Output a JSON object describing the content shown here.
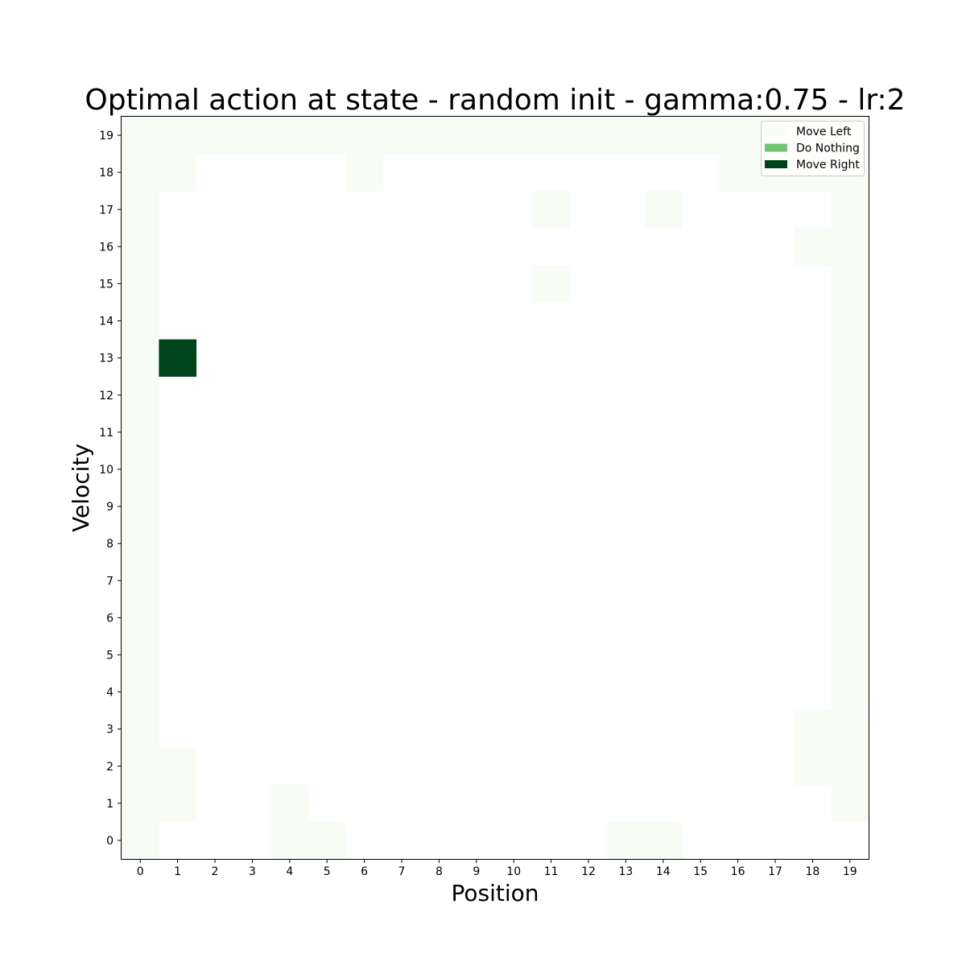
{
  "chart_data": {
    "type": "heatmap",
    "title": "Optimal action at state - random init - gamma:0.75 - lr:2",
    "xlabel": "Position",
    "ylabel": "Velocity",
    "x_ticks": [
      "0",
      "1",
      "2",
      "3",
      "4",
      "5",
      "6",
      "7",
      "8",
      "9",
      "10",
      "11",
      "12",
      "13",
      "14",
      "15",
      "16",
      "17",
      "18",
      "19"
    ],
    "y_ticks": [
      "0",
      "1",
      "2",
      "3",
      "4",
      "5",
      "6",
      "7",
      "8",
      "9",
      "10",
      "11",
      "12",
      "13",
      "14",
      "15",
      "16",
      "17",
      "18",
      "19"
    ],
    "legend_position": "top-right",
    "grid": false,
    "legend": [
      {
        "label": "Move Left",
        "value": 0,
        "color": "#f7fcf5"
      },
      {
        "label": "Do Nothing",
        "value": 1,
        "color": "#74c476"
      },
      {
        "label": "Move Right",
        "value": 2,
        "color": "#00441b"
      }
    ],
    "colors": {
      "0": "#f7fcf5",
      "1": "#74c476",
      "2": "#00441b"
    },
    "blank_color": "#ffffff",
    "cells_note_rows": "rows indexed by velocity 0..19; each row lists 20 position values; null = blank",
    "cells": [
      [
        0,
        null,
        null,
        null,
        0,
        0,
        null,
        null,
        null,
        null,
        null,
        null,
        null,
        0,
        0,
        null,
        null,
        null,
        null,
        null
      ],
      [
        0,
        0,
        null,
        null,
        0,
        null,
        null,
        null,
        null,
        null,
        null,
        null,
        null,
        null,
        null,
        null,
        null,
        null,
        null,
        0
      ],
      [
        0,
        0,
        null,
        null,
        null,
        null,
        null,
        null,
        null,
        null,
        null,
        null,
        null,
        null,
        null,
        null,
        null,
        null,
        0,
        0
      ],
      [
        0,
        null,
        null,
        null,
        null,
        null,
        null,
        null,
        null,
        null,
        null,
        null,
        null,
        null,
        null,
        null,
        null,
        null,
        0,
        0
      ],
      [
        0,
        null,
        null,
        null,
        null,
        null,
        null,
        null,
        null,
        null,
        null,
        null,
        null,
        null,
        null,
        null,
        null,
        null,
        null,
        0
      ],
      [
        0,
        null,
        null,
        null,
        null,
        null,
        null,
        null,
        null,
        null,
        null,
        null,
        null,
        null,
        null,
        null,
        null,
        null,
        null,
        0
      ],
      [
        0,
        null,
        null,
        null,
        null,
        null,
        null,
        null,
        null,
        null,
        null,
        null,
        null,
        null,
        null,
        null,
        null,
        null,
        null,
        0
      ],
      [
        0,
        null,
        null,
        null,
        null,
        null,
        null,
        null,
        null,
        null,
        null,
        null,
        null,
        null,
        null,
        null,
        null,
        null,
        null,
        0
      ],
      [
        0,
        null,
        null,
        null,
        null,
        null,
        null,
        null,
        null,
        null,
        null,
        null,
        null,
        null,
        null,
        null,
        null,
        null,
        null,
        0
      ],
      [
        0,
        null,
        null,
        null,
        null,
        null,
        null,
        null,
        null,
        null,
        null,
        null,
        null,
        null,
        null,
        null,
        null,
        null,
        null,
        0
      ],
      [
        0,
        null,
        null,
        null,
        null,
        null,
        null,
        null,
        null,
        null,
        null,
        null,
        null,
        null,
        null,
        null,
        null,
        null,
        null,
        0
      ],
      [
        0,
        null,
        null,
        null,
        null,
        null,
        null,
        null,
        null,
        null,
        null,
        null,
        null,
        null,
        null,
        null,
        null,
        null,
        null,
        0
      ],
      [
        0,
        null,
        null,
        null,
        null,
        null,
        null,
        null,
        null,
        null,
        null,
        null,
        null,
        null,
        null,
        null,
        null,
        null,
        null,
        0
      ],
      [
        0,
        2,
        null,
        null,
        null,
        null,
        null,
        null,
        null,
        null,
        null,
        null,
        null,
        null,
        null,
        null,
        null,
        null,
        null,
        0
      ],
      [
        0,
        null,
        null,
        null,
        null,
        null,
        null,
        null,
        null,
        null,
        null,
        null,
        null,
        null,
        null,
        null,
        null,
        null,
        null,
        0
      ],
      [
        0,
        null,
        null,
        null,
        null,
        null,
        null,
        null,
        null,
        null,
        null,
        0,
        null,
        null,
        null,
        null,
        null,
        null,
        null,
        0
      ],
      [
        0,
        null,
        null,
        null,
        null,
        null,
        null,
        null,
        null,
        null,
        null,
        null,
        null,
        null,
        null,
        null,
        null,
        null,
        0,
        0
      ],
      [
        0,
        null,
        null,
        null,
        null,
        null,
        null,
        null,
        null,
        null,
        null,
        0,
        null,
        null,
        0,
        null,
        null,
        null,
        null,
        0
      ],
      [
        0,
        0,
        null,
        null,
        null,
        null,
        0,
        null,
        null,
        null,
        null,
        null,
        null,
        null,
        null,
        null,
        0,
        0,
        0,
        0
      ],
      [
        0,
        0,
        0,
        0,
        0,
        0,
        0,
        0,
        0,
        0,
        0,
        0,
        0,
        0,
        0,
        0,
        0,
        0,
        0,
        0
      ]
    ]
  }
}
